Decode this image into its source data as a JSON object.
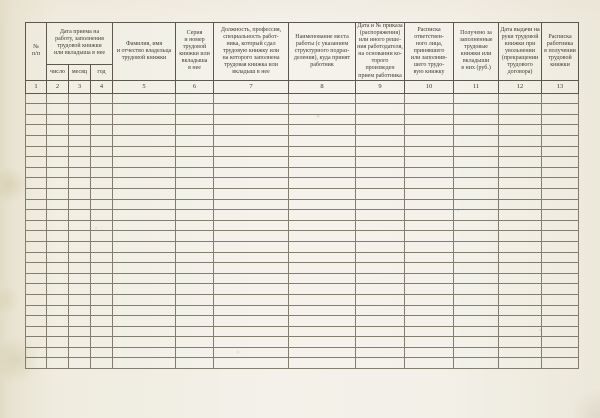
{
  "table": {
    "date_group_label": "Дата приема на\nработу, заполнения\nтрудовой книжки\nили вкладыша в нее",
    "empty_row_count": 26,
    "columns": [
      {
        "number": "1",
        "label": "№\nп/п"
      },
      {
        "number": "2",
        "label": "число"
      },
      {
        "number": "3",
        "label": "месяц"
      },
      {
        "number": "4",
        "label": "год"
      },
      {
        "number": "5",
        "label": "Фамилия, имя\nи отчество владельца\nтрудовой книжки"
      },
      {
        "number": "6",
        "label": "Серия\nи номер\nтрудовой\nкнижки или\nвкладыша\nв нее"
      },
      {
        "number": "7",
        "label": "Должность, профессия,\nспециальность работ-\nника, который сдал\nтрудовую книжку или\nна которого заполнена\nтрудовая книжка или\nвкладыш в нее"
      },
      {
        "number": "8",
        "label": "Наименование места\nработы (с указанием\nструктурного подраз-\nделения), куда принят\nработник"
      },
      {
        "number": "9",
        "label": "Дата и № приказа\n(распоряжения)\nили иного реше-\nния работодателя,\nна основании ко-\nторого произведен\nприем работника"
      },
      {
        "number": "10",
        "label": "Расписка\nответствен-\nного лица,\nпринявшего\nили заполнив-\nшего трудо-\nвую книжку"
      },
      {
        "number": "11",
        "label": "Получено за\nзаполненные\nтрудовые\nкнижки или\nвкладыши\nв них (руб.)"
      },
      {
        "number": "12",
        "label": "Дата выдачи на\nруки трудовой\nкнижки при\nувольнении\n(прекращении\nтрудового\nдоговора)"
      },
      {
        "number": "13",
        "label": "Расписка\nработника\nв получении\nтрудовой\nкнижки"
      }
    ]
  }
}
